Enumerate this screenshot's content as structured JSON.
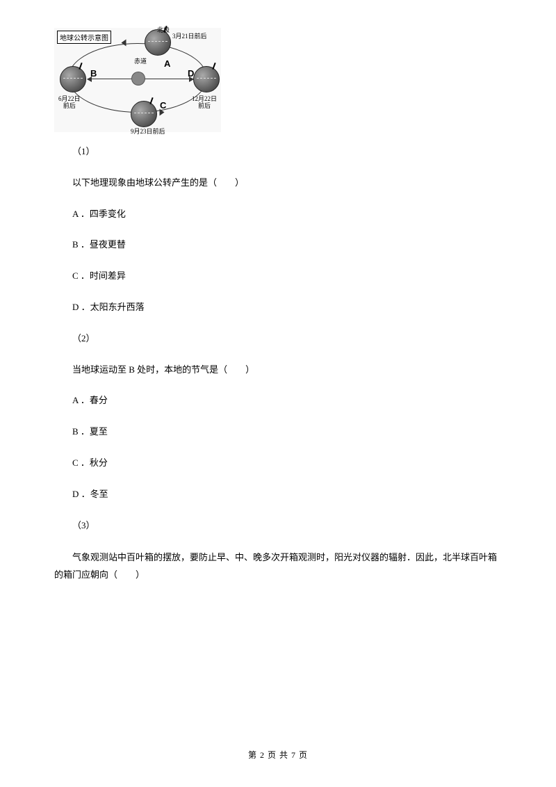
{
  "diagram": {
    "title": "地球公转示意图",
    "positions": {
      "A": {
        "label": "A",
        "date": "3月21日前后",
        "pole": "北极"
      },
      "B": {
        "label": "B",
        "date": "6月22日\n前后"
      },
      "C": {
        "label": "C",
        "date": "9月23日前后"
      },
      "D": {
        "label": "D",
        "date": "12月22日\n前后"
      }
    },
    "equator_label": "赤道",
    "colors": {
      "globe_dark": "#555555",
      "globe_light": "#aaaaaa",
      "line": "#333333",
      "bg": "#f8f8f8"
    }
  },
  "q1": {
    "num": "（1）",
    "stem": "以下地理现象由地球公转产生的是（　　）",
    "options": {
      "A": "A ．四季变化",
      "B": "B ．昼夜更替",
      "C": "C ．时间差异",
      "D": "D ．太阳东升西落"
    }
  },
  "q2": {
    "num": "（2）",
    "stem": "当地球运动至 B 处时，本地的节气是（　　）",
    "options": {
      "A": "A ．春分",
      "B": "B ．夏至",
      "C": "C ．秋分",
      "D": "D ．冬至"
    }
  },
  "q3": {
    "num": "（3）",
    "stem": "气象观测站中百叶箱的摆放，要防止早、中、晚多次开箱观测时，阳光对仪器的辐射．因此，北半球百叶箱的箱门应朝向（　　）"
  },
  "footer": "第 2 页 共 7 页"
}
